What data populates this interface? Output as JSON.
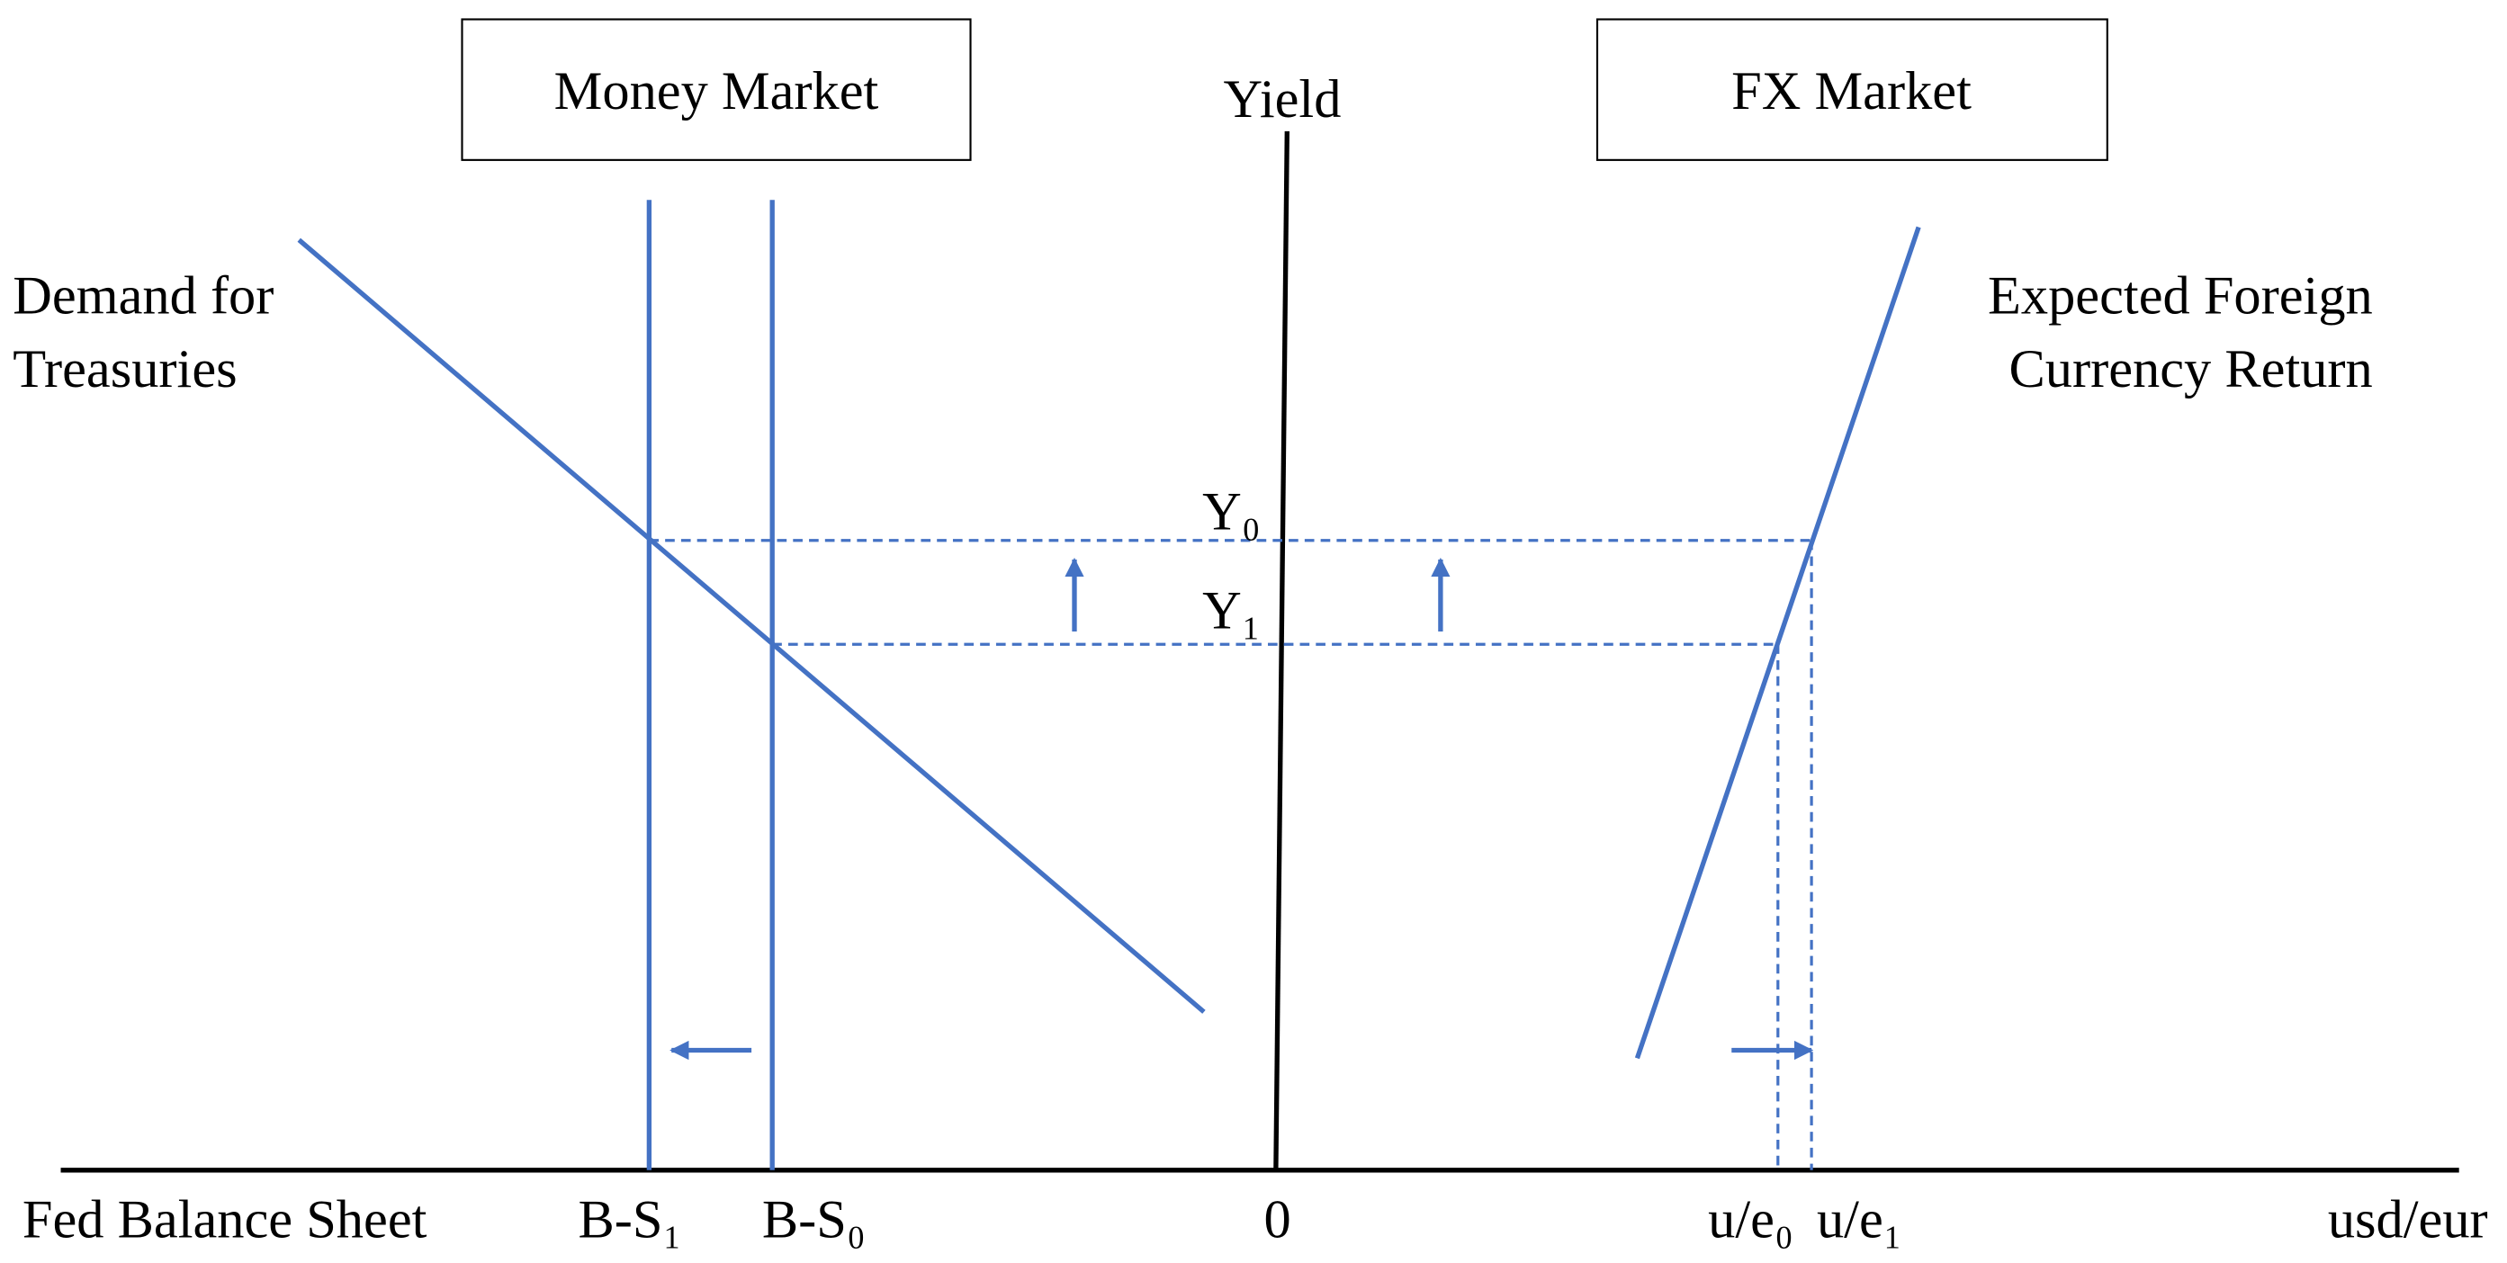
{
  "boxes": {
    "money_market": "Money Market",
    "fx_market": "FX Market"
  },
  "axis": {
    "y_label": "Yield",
    "x_left_label": "Fed Balance Sheet",
    "x_right_label": "usd/eur",
    "origin": "0"
  },
  "curves": {
    "demand": [
      "Demand for",
      "Treasuries"
    ],
    "fx_return": [
      "Expected Foreign",
      "Currency Return"
    ]
  },
  "levels": {
    "y0": "Y₀",
    "y1": "Y₁"
  },
  "markers": {
    "bs1": "B-S₁",
    "bs0": "B-S₀",
    "ue0": "u/e₀",
    "ue1": "u/e₁"
  }
}
